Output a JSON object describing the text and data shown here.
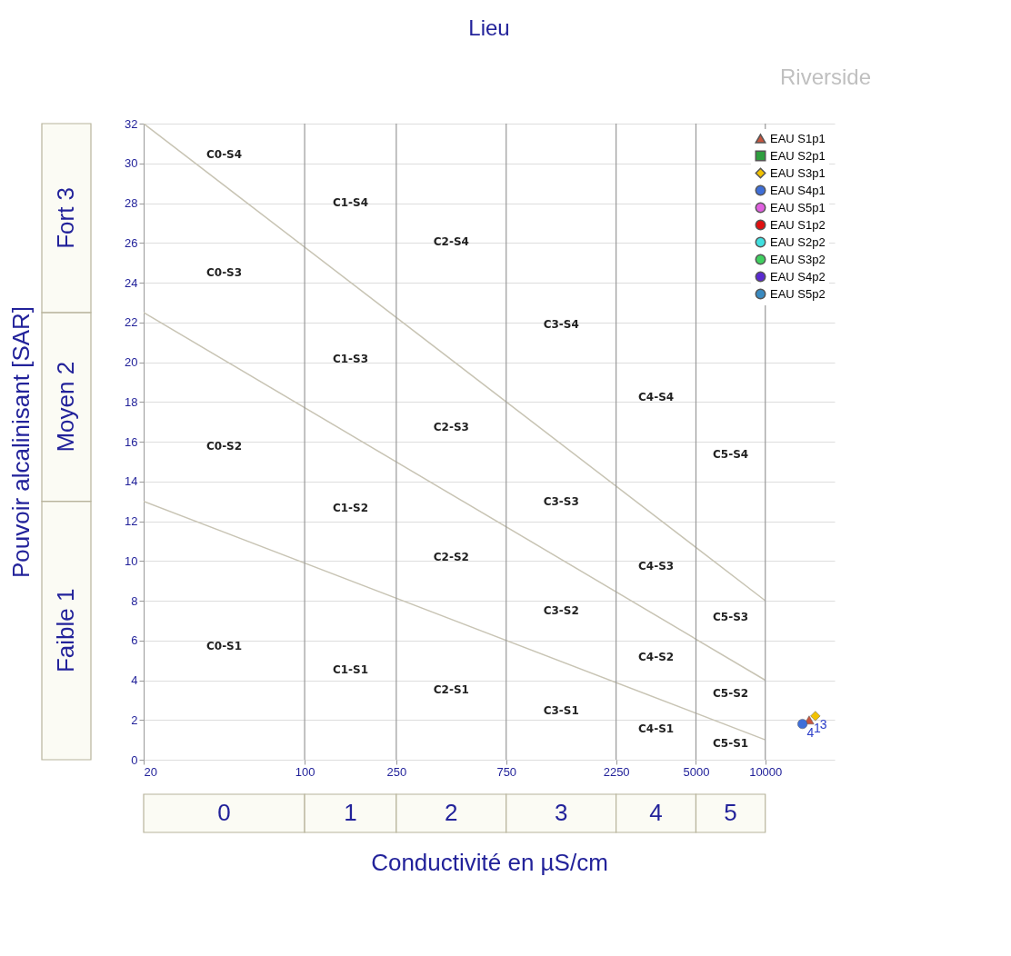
{
  "chart_data": {
    "type": "scatter",
    "title": "Lieu",
    "xlabel": "Conductivité en µS/cm",
    "ylabel": "Pouvoir alcalinisant [SAR]",
    "log": "x",
    "xlim": [
      20,
      20000
    ],
    "xticks": [
      20,
      100,
      250,
      750,
      2250,
      5000,
      10000
    ],
    "ylim": [
      0,
      32
    ],
    "yticks": [
      0,
      2,
      4,
      6,
      8,
      10,
      12,
      14,
      16,
      18,
      20,
      22,
      24,
      26,
      28,
      30,
      32
    ],
    "grid": "y",
    "legend": "top right",
    "series": [
      {
        "name": "EAU S1p1",
        "color": "#c8553d",
        "marker": "triangle",
        "x": [
          15500
        ],
        "values": [
          2.0
        ]
      },
      {
        "name": "EAU S2p1",
        "color": "#2e9e3e",
        "marker": "square"
      },
      {
        "name": "EAU S3p1",
        "color": "#f2c200",
        "marker": "diamond",
        "x": [
          16500
        ],
        "values": [
          2.2
        ]
      },
      {
        "name": "EAU S4p1",
        "color": "#3f6fd8",
        "marker": "circle",
        "x": [
          14500
        ],
        "values": [
          1.8
        ]
      },
      {
        "name": "EAU S5p1",
        "color": "#e060e0",
        "marker": "circle"
      },
      {
        "name": "EAU S1p2",
        "color": "#e01010",
        "marker": "circle"
      },
      {
        "name": "EAU S2p2",
        "color": "#40e0e0",
        "marker": "circle"
      },
      {
        "name": "EAU S3p2",
        "color": "#40d060",
        "marker": "circle"
      },
      {
        "name": "EAU S4p2",
        "color": "#5a2ad0",
        "marker": "circle"
      },
      {
        "name": "EAU S5p2",
        "color": "#3a8ac0",
        "marker": "circle"
      },
      {
        "type": "line",
        "color": "#c8c4b4",
        "x": [
          20,
          10000
        ],
        "values": [
          13,
          1
        ]
      },
      {
        "type": "line",
        "color": "#c8c4b4",
        "x": [
          20,
          10000
        ],
        "values": [
          22.5,
          4
        ]
      },
      {
        "type": "line",
        "color": "#c8c4b4",
        "x": [
          20,
          10000
        ],
        "values": [
          32,
          8
        ]
      }
    ],
    "ref_lines": [
      {
        "axis": "x",
        "value": 100,
        "color": "#999999"
      },
      {
        "axis": "x",
        "value": 250,
        "color": "#999999"
      },
      {
        "axis": "x",
        "value": 750,
        "color": "#999999"
      },
      {
        "axis": "x",
        "value": 2250,
        "color": "#999999"
      },
      {
        "axis": "x",
        "value": 5000,
        "color": "#999999"
      },
      {
        "axis": "x",
        "value": 10000,
        "color": "#999999"
      }
    ],
    "annotations": [
      "Riverside",
      "C0-S1",
      "C0-S2",
      "C0-S3",
      "C0-S4",
      "C1-S1",
      "C1-S2",
      "C1-S3",
      "C1-S4",
      "C2-S1",
      "C2-S2",
      "C2-S3",
      "C2-S4",
      "C3-S1",
      "C3-S2",
      "C3-S3",
      "C3-S4",
      "C4-S1",
      "C4-S2",
      "C4-S3",
      "C4-S4",
      "C5-S1",
      "C5-S2",
      "C5-S3",
      "C5-S4",
      "0",
      "1",
      "2",
      "3",
      "4",
      "5",
      "Faible  1",
      "Moyen  2",
      "Fort  3",
      "1",
      "3",
      "4"
    ]
  }
}
